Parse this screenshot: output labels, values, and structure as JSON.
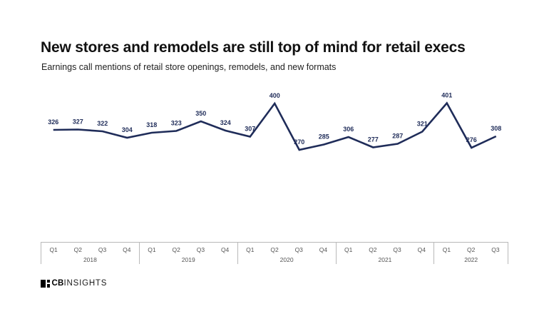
{
  "title": "New stores and remodels are still top of mind for retail execs",
  "subtitle": "Earnings call mentions of retail store openings, remodels, and new formats",
  "logo": {
    "bold": "CB",
    "light": "INSIGHTS",
    "icon": "cbinsights-block-mark"
  },
  "colors": {
    "line": "#1f2c59",
    "label": "#1f2c59",
    "axis_line": "#b9b9b9",
    "axis_text": "#555555",
    "title": "#111111",
    "subtitle": "#222222"
  },
  "chart_data": {
    "type": "line",
    "title": "New stores and remodels are still top of mind for retail execs",
    "subtitle": "Earnings call mentions of retail store openings, remodels, and new formats",
    "categories": [
      "Q1 2018",
      "Q2 2018",
      "Q3 2018",
      "Q4 2018",
      "Q1 2019",
      "Q2 2019",
      "Q3 2019",
      "Q4 2019",
      "Q1 2020",
      "Q2 2020",
      "Q3 2020",
      "Q4 2020",
      "Q1 2021",
      "Q2 2021",
      "Q3 2021",
      "Q4 2021",
      "Q1 2022",
      "Q2 2022",
      "Q3 2022"
    ],
    "values": [
      326,
      327,
      322,
      304,
      318,
      323,
      350,
      324,
      307,
      400,
      270,
      285,
      306,
      277,
      287,
      321,
      401,
      276,
      308
    ],
    "years": [
      {
        "label": "2018",
        "quarters": [
          "Q1",
          "Q2",
          "Q3",
          "Q4"
        ]
      },
      {
        "label": "2019",
        "quarters": [
          "Q1",
          "Q2",
          "Q3",
          "Q4"
        ]
      },
      {
        "label": "2020",
        "quarters": [
          "Q1",
          "Q2",
          "Q3",
          "Q4"
        ]
      },
      {
        "label": "2021",
        "quarters": [
          "Q1",
          "Q2",
          "Q3",
          "Q4"
        ]
      },
      {
        "label": "2022",
        "quarters": [
          "Q1",
          "Q2",
          "Q3"
        ]
      }
    ],
    "data_labels": true,
    "grid": false,
    "legend": false,
    "ylim": [
      250,
      420
    ],
    "line_color": "#1f2c59"
  }
}
